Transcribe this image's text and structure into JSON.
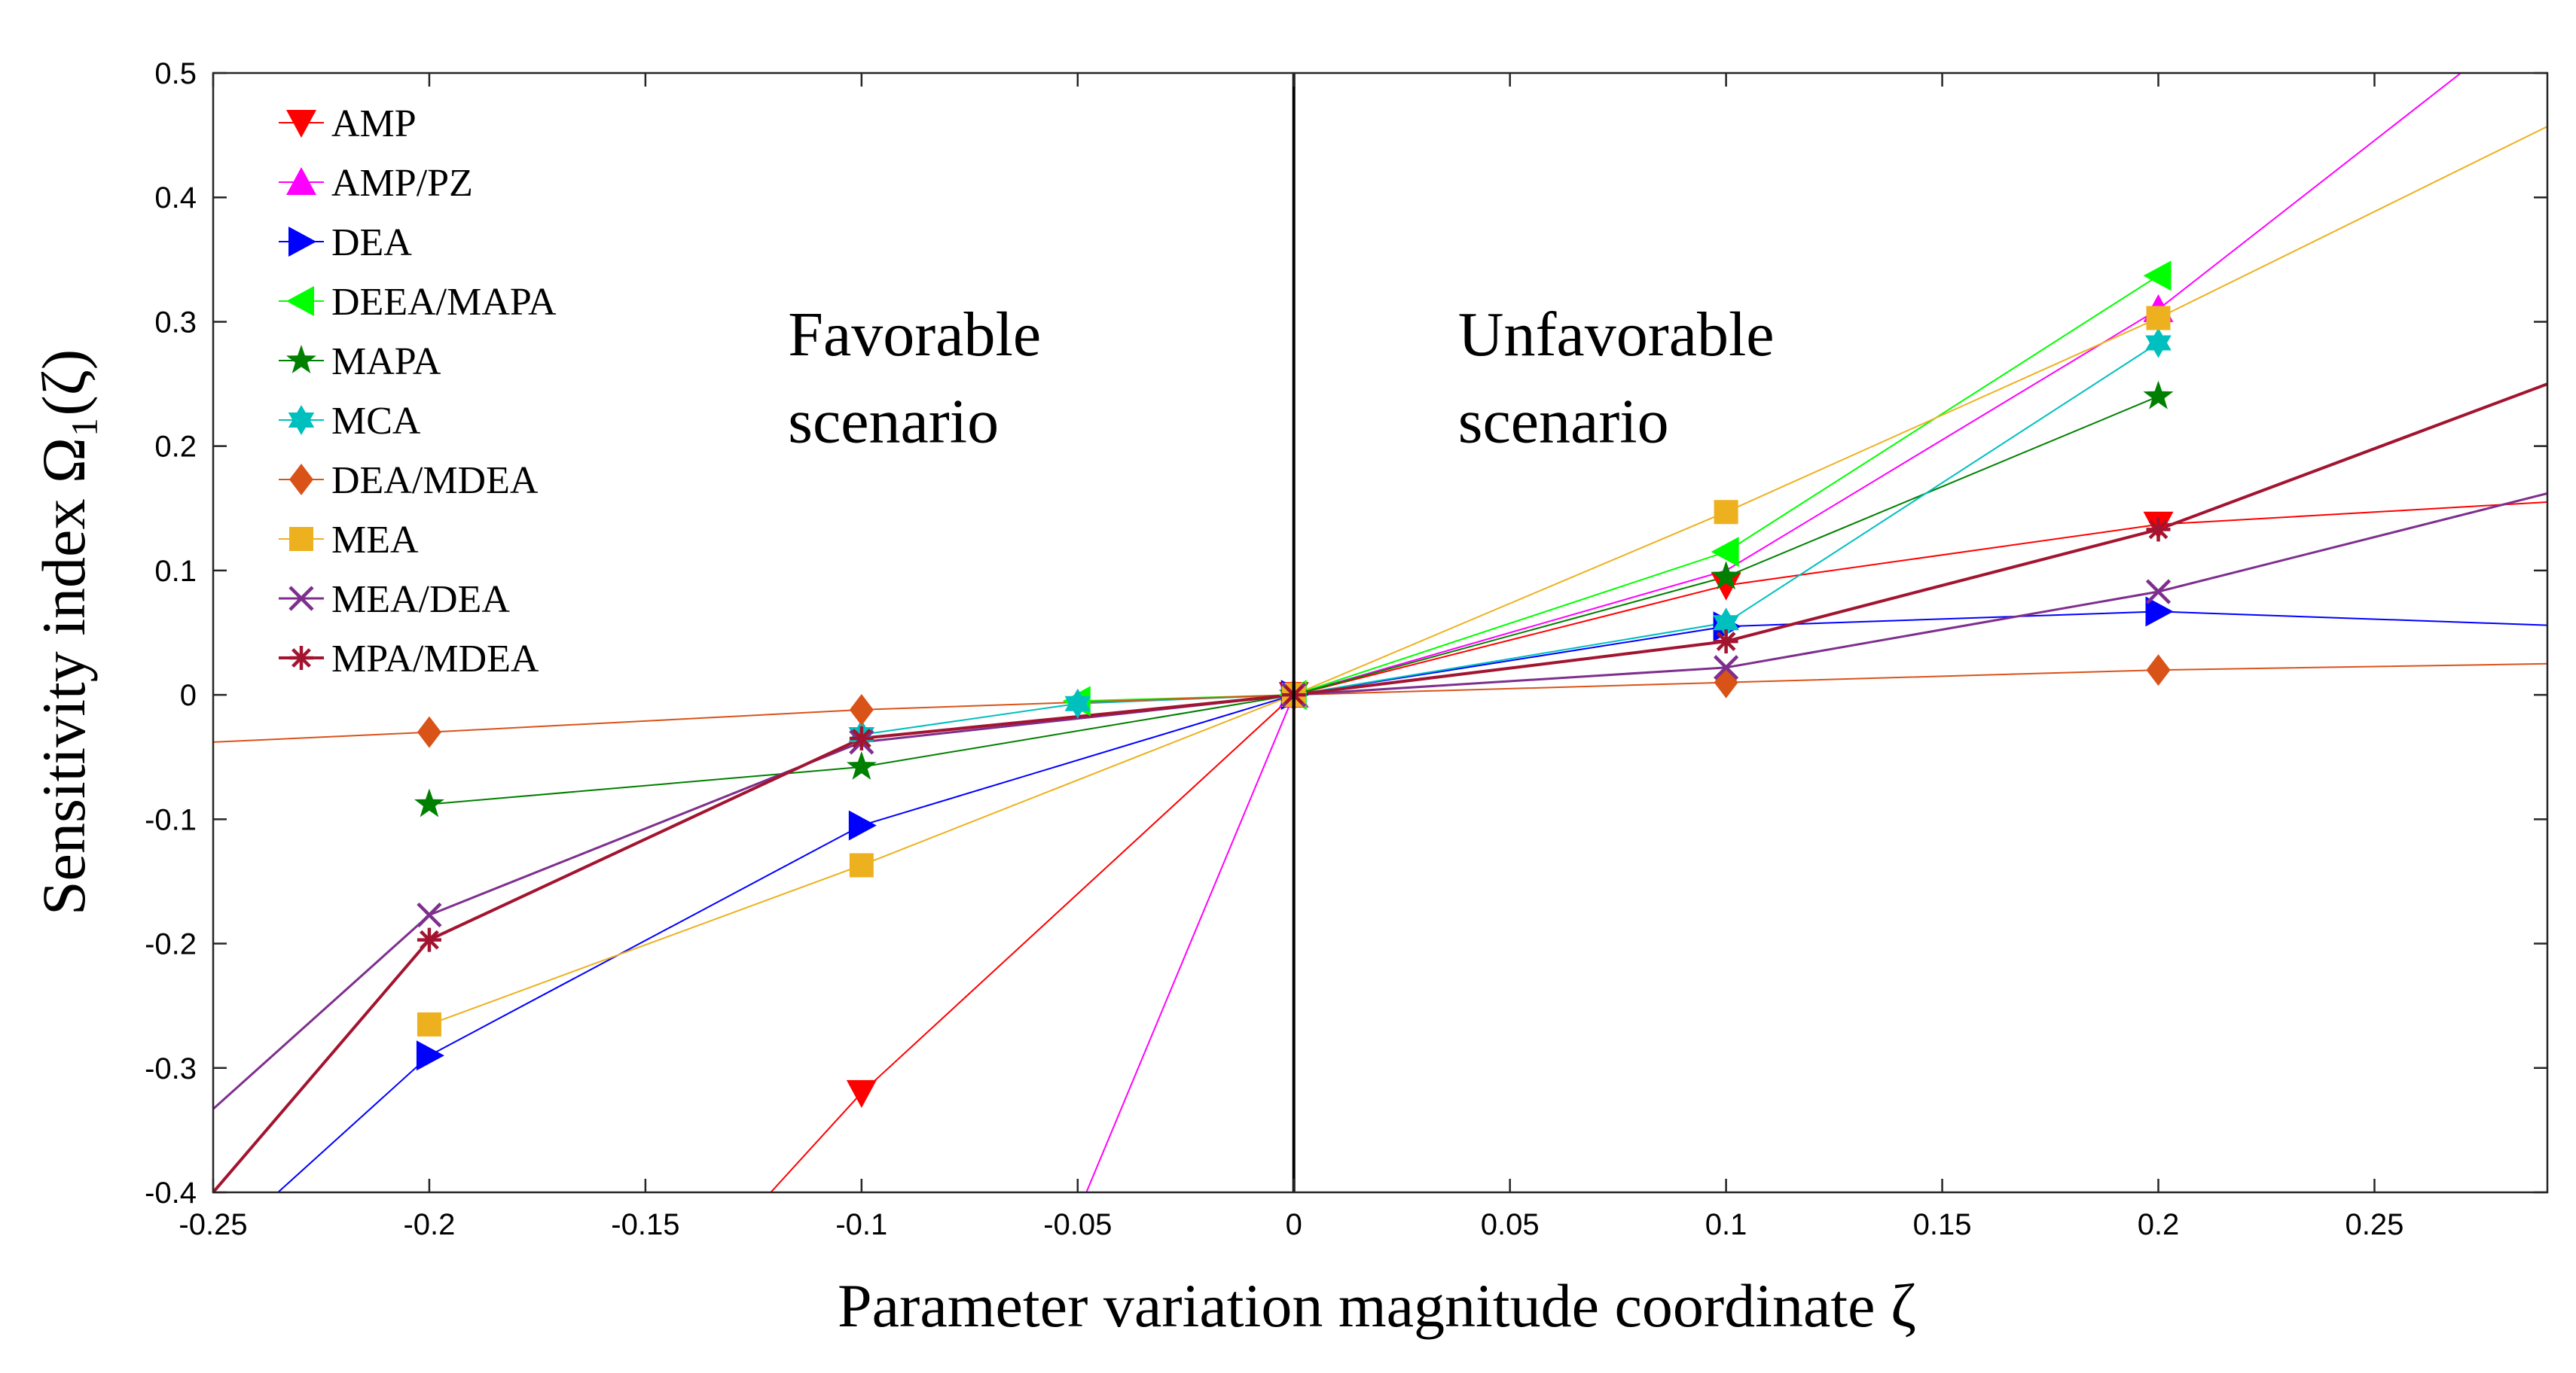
{
  "chart_data": {
    "type": "line",
    "title": "",
    "xlabel": "Parameter variation magnitude coordinate ζ",
    "ylabel": "Sensitivity index Ω₁(ζ)",
    "xlim": [
      -0.25,
      0.29
    ],
    "ylim": [
      -0.4,
      0.5
    ],
    "xticks": [
      -0.25,
      -0.2,
      -0.15,
      -0.1,
      -0.05,
      0,
      0.05,
      0.1,
      0.15,
      0.2,
      0.25
    ],
    "xtick_labels": [
      "-0.25",
      "-0.2",
      "-0.15",
      "-0.1",
      "-0.05",
      "0",
      "0.05",
      "0.1",
      "0.15",
      "0.2",
      "0.25"
    ],
    "yticks": [
      -0.4,
      -0.3,
      -0.2,
      -0.1,
      0,
      0.1,
      0.2,
      0.3,
      0.4,
      0.5
    ],
    "ytick_labels": [
      "-0.4",
      "-0.3",
      "-0.2",
      "-0.1",
      "0",
      "0.1",
      "0.2",
      "0.3",
      "0.4",
      "0.5"
    ],
    "grid": false,
    "legend_position": "top-left",
    "annotations": [
      {
        "lines": [
          "Favorable",
          "scenario"
        ],
        "x": -0.117,
        "y": [
          0.273,
          0.203
        ]
      },
      {
        "lines": [
          "Unfavorable",
          "scenario"
        ],
        "x": 0.038,
        "y": [
          0.273,
          0.203
        ]
      }
    ],
    "series": [
      {
        "name": "AMP",
        "color": "#ff0000",
        "marker": "triangle-down",
        "lw": 2,
        "x": [
          -0.121,
          -0.1,
          0,
          0.1,
          0.2,
          0.29
        ],
        "y": [
          -0.4,
          -0.32,
          0,
          0.088,
          0.137,
          0.155
        ],
        "marker_x": [
          -0.1,
          0,
          0.1,
          0.2
        ]
      },
      {
        "name": "AMP/PZ",
        "color": "#ff00ff",
        "marker": "triangle-up",
        "lw": 2,
        "x": [
          -0.048,
          0,
          0.1,
          0.2,
          0.27
        ],
        "y": [
          -0.4,
          0,
          0.1,
          0.31,
          0.5
        ],
        "marker_x": [
          0,
          0.2
        ]
      },
      {
        "name": "DEA",
        "color": "#0000ff",
        "marker": "triangle-right",
        "lw": 2,
        "x": [
          -0.235,
          -0.2,
          -0.1,
          0,
          0.1,
          0.2,
          0.29
        ],
        "y": [
          -0.4,
          -0.29,
          -0.105,
          0,
          0.055,
          0.067,
          0.056
        ],
        "marker_x": [
          -0.2,
          -0.1,
          0,
          0.1,
          0.2
        ]
      },
      {
        "name": "DEEA/MAPA",
        "color": "#00ff00",
        "marker": "triangle-left",
        "lw": 2,
        "x": [
          -0.05,
          0,
          0.1,
          0.2
        ],
        "y": [
          -0.005,
          0,
          0.115,
          0.337
        ],
        "marker_x": [
          -0.05,
          0,
          0.1,
          0.2
        ]
      },
      {
        "name": "MAPA",
        "color": "#008000",
        "marker": "star",
        "lw": 2,
        "x": [
          -0.2,
          -0.1,
          0,
          0.1,
          0.2
        ],
        "y": [
          -0.088,
          -0.058,
          0,
          0.095,
          0.24
        ],
        "marker_x": [
          -0.2,
          -0.1,
          0,
          0.1,
          0.2
        ]
      },
      {
        "name": "MCA",
        "color": "#00bfbf",
        "marker": "hexagram",
        "lw": 2,
        "x": [
          -0.1,
          -0.05,
          0,
          0.1,
          0.2
        ],
        "y": [
          -0.032,
          -0.007,
          0,
          0.058,
          0.283
        ],
        "marker_x": [
          -0.1,
          -0.05,
          0,
          0.1,
          0.2
        ]
      },
      {
        "name": "DEA/MDEA",
        "color": "#d95319",
        "marker": "diamond",
        "lw": 2,
        "x": [
          -0.25,
          -0.2,
          -0.1,
          0,
          0.1,
          0.2,
          0.29
        ],
        "y": [
          -0.038,
          -0.03,
          -0.012,
          0,
          0.01,
          0.02,
          0.025
        ],
        "marker_x": [
          -0.2,
          -0.1,
          0,
          0.1,
          0.2
        ]
      },
      {
        "name": "MEA",
        "color": "#edb120",
        "marker": "square",
        "lw": 2,
        "x": [
          -0.2,
          -0.1,
          0,
          0.1,
          0.2,
          0.29
        ],
        "y": [
          -0.265,
          -0.137,
          0,
          0.147,
          0.303,
          0.457
        ],
        "marker_x": [
          -0.2,
          -0.1,
          0,
          0.1,
          0.2
        ]
      },
      {
        "name": "MEA/DEA",
        "color": "#7e2f8e",
        "marker": "x",
        "lw": 3,
        "x": [
          -0.25,
          -0.2,
          -0.1,
          0,
          0.1,
          0.2,
          0.29
        ],
        "y": [
          -0.333,
          -0.177,
          -0.038,
          0,
          0.022,
          0.083,
          0.162
        ],
        "marker_x": [
          -0.2,
          -0.1,
          0,
          0.1,
          0.2
        ]
      },
      {
        "name": "MPA/MDEA",
        "color": "#a2142f",
        "marker": "asterisk",
        "lw": 4,
        "x": [
          -0.25,
          -0.2,
          -0.1,
          0,
          0.1,
          0.2,
          0.29
        ],
        "y": [
          -0.4,
          -0.197,
          -0.035,
          0,
          0.043,
          0.133,
          0.25
        ],
        "marker_x": [
          -0.2,
          -0.1,
          0,
          0.1,
          0.2
        ]
      }
    ]
  }
}
